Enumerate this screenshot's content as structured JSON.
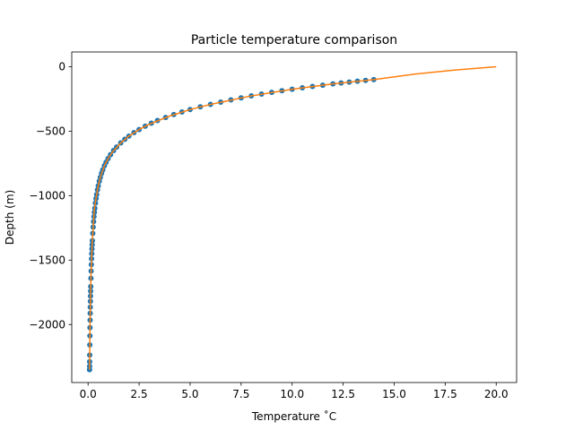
{
  "chart_data": {
    "type": "scatter",
    "title": "Particle temperature comparison",
    "xlabel": "Temperature ˚C",
    "ylabel": "Depth (m)",
    "xlim": [
      -0.8,
      21.0
    ],
    "ylim": [
      -2450,
      115
    ],
    "xticks": [
      0.0,
      2.5,
      5.0,
      7.5,
      10.0,
      12.5,
      15.0,
      17.5,
      20.0
    ],
    "xtick_labels": [
      "0.0",
      "2.5",
      "5.0",
      "7.5",
      "10.0",
      "12.5",
      "15.0",
      "17.5",
      "20.0"
    ],
    "yticks": [
      0,
      -500,
      -1000,
      -1500,
      -2000
    ],
    "ytick_labels": [
      "0",
      "−500",
      "−1000",
      "−1500",
      "−2000"
    ],
    "grid": false,
    "colors": {
      "points": "#1f77b4",
      "line": "#ff7f0e"
    },
    "series": [
      {
        "kind": "scatter",
        "points": [
          [
            14.0,
            -100
          ],
          [
            13.6,
            -106
          ],
          [
            13.2,
            -112
          ],
          [
            12.8,
            -119
          ],
          [
            12.4,
            -126
          ],
          [
            12.0,
            -133
          ],
          [
            11.5,
            -143
          ],
          [
            11.0,
            -153
          ],
          [
            10.5,
            -163
          ],
          [
            10.0,
            -174
          ],
          [
            9.5,
            -186
          ],
          [
            9.0,
            -199
          ],
          [
            8.5,
            -212
          ],
          [
            8.0,
            -226
          ],
          [
            7.5,
            -241
          ],
          [
            7.0,
            -257
          ],
          [
            6.5,
            -274
          ],
          [
            6.0,
            -292
          ],
          [
            5.5,
            -311
          ],
          [
            5.0,
            -332
          ],
          [
            4.6,
            -351
          ],
          [
            4.2,
            -371
          ],
          [
            3.8,
            -393
          ],
          [
            3.4,
            -417
          ],
          [
            3.1,
            -438
          ],
          [
            2.8,
            -461
          ],
          [
            2.5,
            -487
          ],
          [
            2.25,
            -511
          ],
          [
            2.0,
            -538
          ],
          [
            1.8,
            -563
          ],
          [
            1.6,
            -591
          ],
          [
            1.4,
            -623
          ],
          [
            1.25,
            -650
          ],
          [
            1.1,
            -682
          ],
          [
            0.98,
            -712
          ],
          [
            0.88,
            -741
          ],
          [
            0.8,
            -768
          ],
          [
            0.72,
            -800
          ],
          [
            0.66,
            -827
          ],
          [
            0.6,
            -858
          ],
          [
            0.55,
            -888
          ],
          [
            0.5,
            -923
          ],
          [
            0.46,
            -955
          ],
          [
            0.42,
            -991
          ],
          [
            0.39,
            -1022
          ],
          [
            0.36,
            -1058
          ],
          [
            0.33,
            -1098
          ],
          [
            0.31,
            -1129
          ],
          [
            0.29,
            -1163
          ],
          [
            0.27,
            -1201
          ],
          [
            0.25,
            -1244
          ],
          [
            0.23,
            -1293
          ],
          [
            0.21,
            -1349
          ],
          [
            0.2,
            -1380
          ],
          [
            0.19,
            -1413
          ],
          [
            0.18,
            -1450
          ],
          [
            0.17,
            -1490
          ],
          [
            0.16,
            -1535
          ],
          [
            0.15,
            -1585
          ],
          [
            0.14,
            -1641
          ],
          [
            0.13,
            -1705
          ],
          [
            0.125,
            -1741
          ],
          [
            0.12,
            -1779
          ],
          [
            0.115,
            -1820
          ],
          [
            0.11,
            -1865
          ],
          [
            0.105,
            -1913
          ],
          [
            0.1,
            -1966
          ],
          [
            0.095,
            -2024
          ],
          [
            0.09,
            -2088
          ],
          [
            0.085,
            -2158
          ],
          [
            0.08,
            -2237
          ],
          [
            0.077,
            -2288
          ],
          [
            0.075,
            -2324
          ],
          [
            0.072,
            -2350
          ]
        ]
      },
      {
        "kind": "line",
        "points": [
          [
            20.0,
            0
          ],
          [
            18.0,
            -25
          ],
          [
            16.0,
            -57
          ],
          [
            14.0,
            -100
          ],
          [
            12.0,
            -133
          ],
          [
            10.0,
            -174
          ],
          [
            8.0,
            -226
          ],
          [
            6.0,
            -292
          ],
          [
            5.0,
            -332
          ],
          [
            4.0,
            -382
          ],
          [
            3.0,
            -446
          ],
          [
            2.5,
            -487
          ],
          [
            2.0,
            -538
          ],
          [
            1.6,
            -591
          ],
          [
            1.2,
            -660
          ],
          [
            1.0,
            -707
          ],
          [
            0.8,
            -768
          ],
          [
            0.6,
            -858
          ],
          [
            0.5,
            -923
          ],
          [
            0.4,
            -1008
          ],
          [
            0.3,
            -1113
          ],
          [
            0.25,
            -1244
          ],
          [
            0.2,
            -1380
          ],
          [
            0.15,
            -1585
          ],
          [
            0.12,
            -1779
          ],
          [
            0.1,
            -1966
          ],
          [
            0.085,
            -2158
          ],
          [
            0.075,
            -2324
          ],
          [
            0.072,
            -2350
          ]
        ]
      }
    ]
  }
}
